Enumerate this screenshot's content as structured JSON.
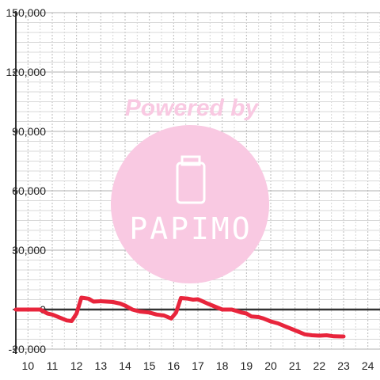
{
  "chart_data": {
    "type": "line",
    "title": "",
    "xlabel": "",
    "ylabel": "",
    "xlim": [
      9.5,
      24.5
    ],
    "ylim": [
      -20000,
      150000
    ],
    "x_ticks": [
      10,
      11,
      12,
      13,
      14,
      15,
      16,
      17,
      18,
      19,
      20,
      21,
      22,
      23,
      24
    ],
    "x_tick_labels": [
      "10",
      "11",
      "12",
      "13",
      "14",
      "15",
      "16",
      "17",
      "18",
      "19",
      "20",
      "21",
      "22",
      "23",
      "24"
    ],
    "y_ticks": [
      -20000,
      0,
      30000,
      60000,
      90000,
      120000,
      150000
    ],
    "y_tick_labels": [
      "-20,000",
      "0",
      "30,000",
      "60,000",
      "90,000",
      "120,000",
      "150,000"
    ],
    "grid": true,
    "zero_line": true,
    "series": [
      {
        "color": "#e8253c",
        "x": [
          9.5,
          10.5,
          10.8,
          11.0,
          11.4,
          11.6,
          11.8,
          12.0,
          12.2,
          12.5,
          12.7,
          13.0,
          13.5,
          13.8,
          14.0,
          14.3,
          14.6,
          15.0,
          15.3,
          15.6,
          15.9,
          16.1,
          16.3,
          16.6,
          16.8,
          17.0,
          17.4,
          17.8,
          18.0,
          18.4,
          18.8,
          19.0,
          19.2,
          19.5,
          19.7,
          20.0,
          20.3,
          20.6,
          20.9,
          21.1,
          21.4,
          21.7,
          22.0,
          22.3,
          22.6,
          22.9,
          23.0
        ],
        "y": [
          0,
          0,
          -2000,
          -2500,
          -4500,
          -5500,
          -5800,
          -2000,
          6000,
          5500,
          4000,
          4200,
          3800,
          3000,
          2000,
          0,
          -1000,
          -1500,
          -2500,
          -3000,
          -4500,
          -1500,
          5800,
          5500,
          5000,
          5200,
          3000,
          1000,
          0,
          0,
          -1500,
          -2000,
          -3500,
          -3800,
          -4500,
          -6000,
          -7000,
          -8500,
          -10000,
          -11000,
          -12500,
          -13000,
          -13200,
          -13000,
          -13500,
          -13600,
          -13600
        ]
      }
    ]
  },
  "watermark": {
    "line1": "Powered by",
    "brand": "PAPIMO",
    "color": "#f9c9e2"
  }
}
